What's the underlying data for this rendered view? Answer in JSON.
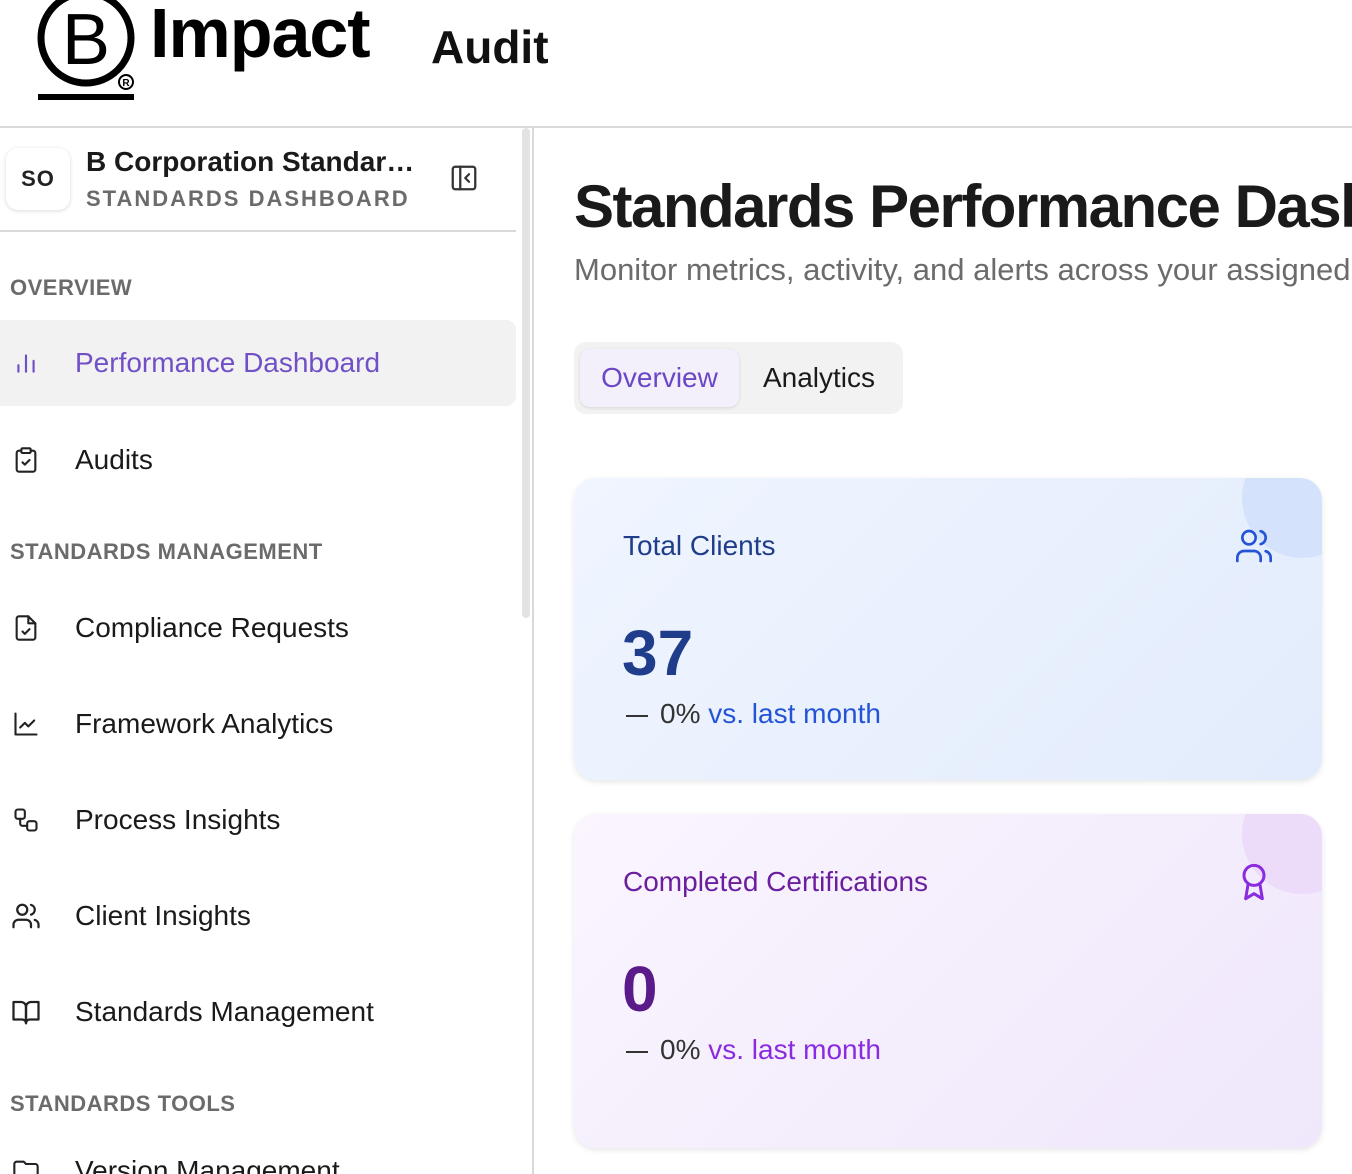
{
  "header": {
    "brand_word": "Impact",
    "brand_sub": "Audit",
    "logo_letter": "B"
  },
  "sidebar": {
    "org": {
      "initials": "SO",
      "name": "B Corporation Standards Organization",
      "subtitle": "STANDARDS DASHBOARD"
    },
    "sections": [
      {
        "label": "OVERVIEW",
        "items": [
          {
            "label": "Performance Dashboard",
            "icon": "bar-chart-icon",
            "active": true
          },
          {
            "label": "Audits",
            "icon": "clipboard-check-icon"
          }
        ]
      },
      {
        "label": "STANDARDS MANAGEMENT",
        "items": [
          {
            "label": "Compliance Requests",
            "icon": "file-check-icon"
          },
          {
            "label": "Framework Analytics",
            "icon": "line-chart-icon"
          },
          {
            "label": "Process Insights",
            "icon": "workflow-icon"
          },
          {
            "label": "Client Insights",
            "icon": "users-icon"
          },
          {
            "label": "Standards Management",
            "icon": "book-open-icon"
          }
        ]
      },
      {
        "label": "STANDARDS TOOLS",
        "items": [
          {
            "label": "Version Management",
            "icon": "folder-icon"
          }
        ]
      }
    ]
  },
  "main": {
    "title": "Standards Performance Dashboard",
    "subtitle": "Monitor metrics, activity, and alerts across your assigned standards",
    "tabs": [
      {
        "label": "Overview",
        "active": true
      },
      {
        "label": "Analytics"
      }
    ],
    "cards": [
      {
        "title": "Total Clients",
        "value": "37",
        "trend_value": "0%",
        "trend_suffix": "vs. last month",
        "icon": "users-icon",
        "accent": "#2453d6"
      },
      {
        "title": "Completed Certifications",
        "value": "0",
        "trend_value": "0%",
        "trend_suffix": "vs. last month",
        "icon": "award-icon",
        "accent": "#8a2be0"
      }
    ]
  },
  "colors": {
    "active_nav": "#7150c7",
    "blue_card": "#2453d6",
    "purple_card": "#8a2be0"
  }
}
